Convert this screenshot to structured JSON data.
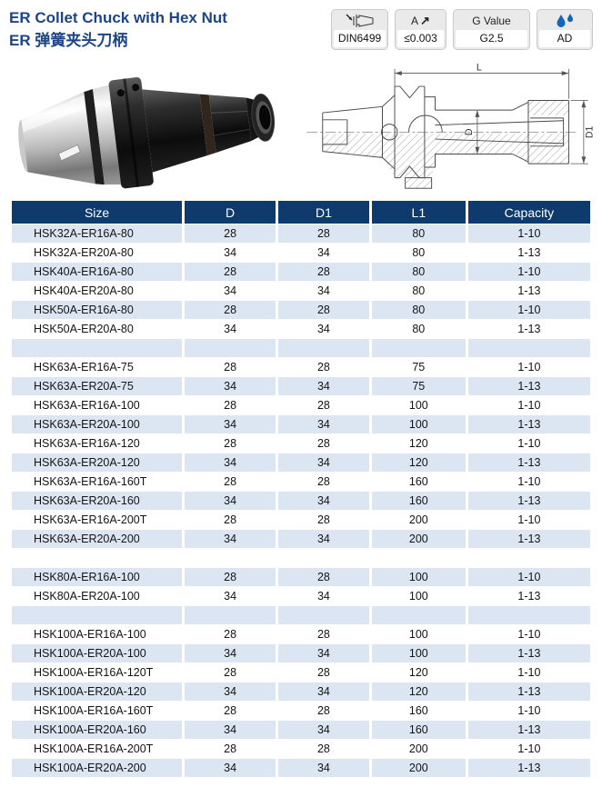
{
  "header": {
    "title_en": "ER Collet Chuck with Hex Nut",
    "title_zh": "ER 弹簧夹头刀柄",
    "badges": {
      "din": {
        "value": "DIN6499"
      },
      "runout": {
        "label": "A",
        "arrow": "↗",
        "value": "≤0.003"
      },
      "gvalue": {
        "label": "G Value",
        "value": "G2.5"
      },
      "coolant": {
        "value": "AD"
      }
    }
  },
  "diagram": {
    "dim_l": "L",
    "dim_d": "D",
    "dim_d1": "D1"
  },
  "table": {
    "columns": [
      "Size",
      "D",
      "D1",
      "L1",
      "Capacity"
    ],
    "rows": [
      [
        "HSK32A-ER16A-80",
        "28",
        "28",
        "80",
        "1-10"
      ],
      [
        "HSK32A-ER20A-80",
        "34",
        "34",
        "80",
        "1-13"
      ],
      [
        "HSK40A-ER16A-80",
        "28",
        "28",
        "80",
        "1-10"
      ],
      [
        "HSK40A-ER20A-80",
        "34",
        "34",
        "80",
        "1-13"
      ],
      [
        "HSK50A-ER16A-80",
        "28",
        "28",
        "80",
        "1-10"
      ],
      [
        "HSK50A-ER20A-80",
        "34",
        "34",
        "80",
        "1-13"
      ],
      [
        "",
        "",
        "",
        "",
        ""
      ],
      [
        "HSK63A-ER16A-75",
        "28",
        "28",
        "75",
        "1-10"
      ],
      [
        "HSK63A-ER20A-75",
        "34",
        "34",
        "75",
        "1-13"
      ],
      [
        "HSK63A-ER16A-100",
        "28",
        "28",
        "100",
        "1-10"
      ],
      [
        "HSK63A-ER20A-100",
        "34",
        "34",
        "100",
        "1-13"
      ],
      [
        "HSK63A-ER16A-120",
        "28",
        "28",
        "120",
        "1-10"
      ],
      [
        "HSK63A-ER20A-120",
        "34",
        "34",
        "120",
        "1-13"
      ],
      [
        "HSK63A-ER16A-160T",
        "28",
        "28",
        "160",
        "1-10"
      ],
      [
        "HSK63A-ER20A-160",
        "34",
        "34",
        "160",
        "1-13"
      ],
      [
        "HSK63A-ER16A-200T",
        "28",
        "28",
        "200",
        "1-10"
      ],
      [
        "HSK63A-ER20A-200",
        "34",
        "34",
        "200",
        "1-13"
      ],
      [
        "",
        "",
        "",
        "",
        ""
      ],
      [
        "HSK80A-ER16A-100",
        "28",
        "28",
        "100",
        "1-10"
      ],
      [
        "HSK80A-ER20A-100",
        "34",
        "34",
        "100",
        "1-13"
      ],
      [
        "",
        "",
        "",
        "",
        ""
      ],
      [
        "HSK100A-ER16A-100",
        "28",
        "28",
        "100",
        "1-10"
      ],
      [
        "HSK100A-ER20A-100",
        "34",
        "34",
        "100",
        "1-13"
      ],
      [
        "HSK100A-ER16A-120T",
        "28",
        "28",
        "120",
        "1-10"
      ],
      [
        "HSK100A-ER20A-120",
        "34",
        "34",
        "120",
        "1-13"
      ],
      [
        "HSK100A-ER16A-160T",
        "28",
        "28",
        "160",
        "1-10"
      ],
      [
        "HSK100A-ER20A-160",
        "34",
        "34",
        "160",
        "1-13"
      ],
      [
        "HSK100A-ER16A-200T",
        "28",
        "28",
        "200",
        "1-10"
      ],
      [
        "HSK100A-ER20A-200",
        "34",
        "34",
        "200",
        "1-13"
      ]
    ]
  },
  "colors": {
    "header_navy": "#0e3a6e",
    "row_alt_blue": "#dce6f2",
    "title_blue": "#1c4587",
    "droplet_blue": "#1565c0"
  }
}
